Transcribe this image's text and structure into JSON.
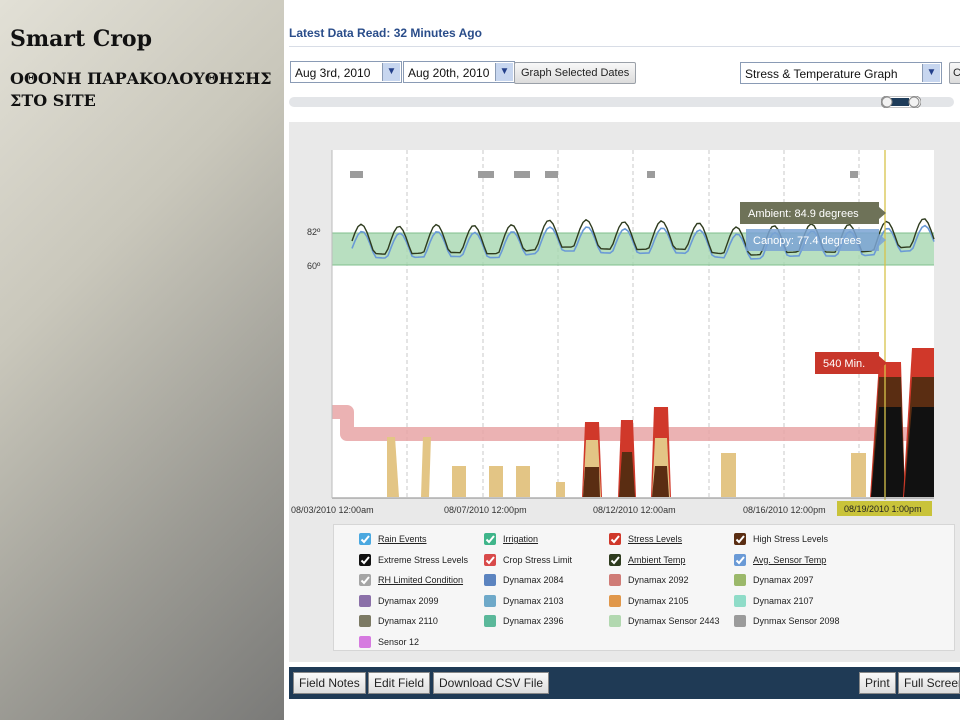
{
  "slide": {
    "title": "Smart Crop",
    "subtitle": "ΟΘΟΝΗ ΠΑΡΑΚΟΛΟΥΘΗΣΗΣ ΣΤΟ SITE"
  },
  "header": {
    "last_read": "Latest Data Read: 32 Minutes Ago"
  },
  "controls": {
    "start_date": "Aug 3rd, 2010",
    "end_date": "Aug 20th, 2010",
    "graph_button": "Graph Selected Dates",
    "graph_type": "Stress & Temperature Graph",
    "extra_button": "C"
  },
  "chart": {
    "y_labels": [
      "82º",
      "60º"
    ],
    "x_labels": [
      "08/03/2010 12:00am",
      "08/07/2010 12:00pm",
      "08/12/2010 12:00am",
      "08/16/2010 12:00pm"
    ],
    "cursor_label": "08/19/2010 1:00pm",
    "ambient_tooltip": "Ambient: 84.9 degrees",
    "canopy_tooltip": "Canopy: 77.4 degrees",
    "stress_tooltip": "540 Min."
  },
  "legend": {
    "items": [
      {
        "label": "Rain Events",
        "color": "#4aa8e0",
        "checked": true,
        "underline": true
      },
      {
        "label": "Irrigation",
        "color": "#3fb58a",
        "checked": true,
        "underline": true
      },
      {
        "label": "Stress Levels",
        "color": "#d0382a",
        "checked": true,
        "underline": true
      },
      {
        "label": "High Stress Levels",
        "color": "#5a2d12",
        "checked": true,
        "underline": false
      },
      {
        "label": "Extreme Stress Levels",
        "color": "#111111",
        "checked": true,
        "underline": false
      },
      {
        "label": "Crop Stress Limit",
        "color": "#d84a4a",
        "checked": true,
        "underline": false
      },
      {
        "label": "Ambient Temp",
        "color": "#2e3b1e",
        "checked": true,
        "underline": true
      },
      {
        "label": "Avg. Sensor Temp",
        "color": "#6a9ad6",
        "checked": true,
        "underline": true
      },
      {
        "label": "RH Limited Condition",
        "color": "#a5a5a5",
        "checked": true,
        "underline": true
      },
      {
        "label": "Dynamax 2084",
        "color": "#5b83bf",
        "checked": false,
        "underline": false
      },
      {
        "label": "Dynamax 2092",
        "color": "#cf7b76",
        "checked": false,
        "underline": false
      },
      {
        "label": "Dynamax 2097",
        "color": "#9bb86a",
        "checked": false,
        "underline": false
      },
      {
        "label": "Dynamax 2099",
        "color": "#8b70a8",
        "checked": false,
        "underline": false
      },
      {
        "label": "Dynamax 2103",
        "color": "#6ea9c9",
        "checked": false,
        "underline": false
      },
      {
        "label": "Dynamax 2105",
        "color": "#e0974a",
        "checked": false,
        "underline": false
      },
      {
        "label": "Dynamax 2107",
        "color": "#8fdcc8",
        "checked": false,
        "underline": false
      },
      {
        "label": "Dynamax 2110",
        "color": "#7c7a64",
        "checked": false,
        "underline": false
      },
      {
        "label": "Dynamax 2396",
        "color": "#5ab89a",
        "checked": false,
        "underline": false
      },
      {
        "label": "Dynamax Sensor 2443",
        "color": "#b2d8b0",
        "checked": false,
        "underline": false
      },
      {
        "label": "Dynmax Sensor 2098",
        "color": "#9b9b9b",
        "checked": false,
        "underline": false
      },
      {
        "label": "Sensor 12",
        "color": "#d67ae0",
        "checked": false,
        "underline": false
      }
    ]
  },
  "toolbar": {
    "field_notes": "Field Notes",
    "edit_field": "Edit Field",
    "download_csv": "Download CSV File",
    "print": "Print",
    "full_screen": "Full Screen"
  }
}
